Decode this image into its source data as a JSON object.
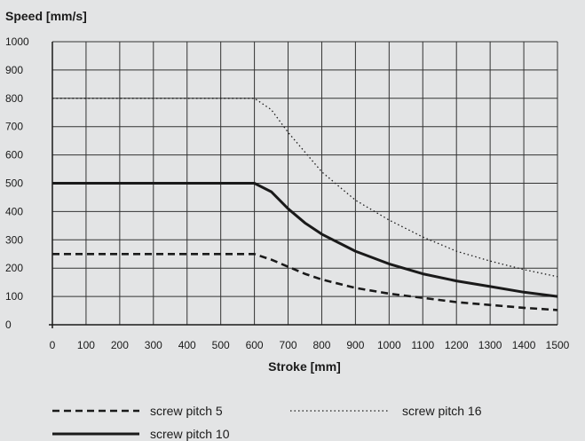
{
  "chart_data": {
    "type": "line",
    "title": "",
    "xlabel": "Stroke [mm]",
    "ylabel": "Speed [mm/s]",
    "xlim": [
      0,
      1500
    ],
    "ylim": [
      0,
      1000
    ],
    "xticks": [
      0,
      100,
      200,
      300,
      400,
      500,
      600,
      700,
      800,
      900,
      1000,
      1100,
      1200,
      1300,
      1400,
      1500
    ],
    "yticks": [
      0,
      100,
      200,
      300,
      400,
      500,
      600,
      700,
      800,
      900,
      1000
    ],
    "grid": true,
    "legend_position": "bottom",
    "series": [
      {
        "name": "screw pitch 5",
        "style": "dashed",
        "color": "#1a1a1a",
        "x": [
          0,
          600,
          650,
          700,
          750,
          800,
          900,
          1000,
          1100,
          1200,
          1300,
          1400,
          1500
        ],
        "y": [
          250,
          250,
          230,
          205,
          180,
          160,
          130,
          110,
          95,
          80,
          70,
          60,
          52
        ]
      },
      {
        "name": "screw pitch 10",
        "style": "solid",
        "color": "#1a1a1a",
        "x": [
          0,
          600,
          650,
          700,
          750,
          800,
          850,
          900,
          1000,
          1100,
          1200,
          1300,
          1400,
          1500
        ],
        "y": [
          500,
          500,
          470,
          410,
          360,
          320,
          290,
          260,
          215,
          180,
          155,
          135,
          115,
          100
        ]
      },
      {
        "name": "screw pitch 16",
        "style": "dotted",
        "color": "#1a1a1a",
        "x": [
          0,
          600,
          650,
          700,
          750,
          800,
          850,
          900,
          1000,
          1100,
          1200,
          1300,
          1400,
          1500
        ],
        "y": [
          800,
          800,
          760,
          680,
          610,
          540,
          490,
          440,
          370,
          310,
          260,
          225,
          195,
          170
        ]
      }
    ]
  }
}
